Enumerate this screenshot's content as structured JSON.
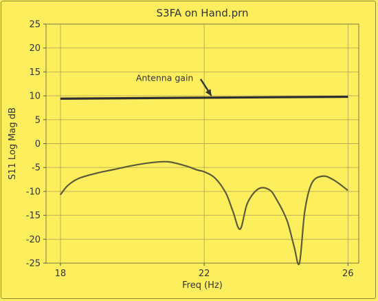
{
  "chart_data": {
    "type": "line",
    "title": "S3FA on Hand.prn",
    "xlabel": "Freq (Hz)",
    "ylabel": "S11 Log Mag dB",
    "xlim": [
      17.6,
      26.3
    ],
    "ylim": [
      -25,
      25
    ],
    "xticks": [
      18,
      22,
      26
    ],
    "yticks": [
      -25,
      -20,
      -15,
      -10,
      -5,
      0,
      5,
      10,
      15,
      20,
      25
    ],
    "grid": true,
    "colors": {
      "background": "#fcee5d",
      "grid": "#b7aa55",
      "curve": "#5d5a38",
      "gain_line": "#2e2e2e"
    },
    "series": [
      {
        "values_x": [
          18.0,
          18.2,
          18.5,
          19.0,
          19.5,
          20.0,
          20.5,
          21.0,
          21.5,
          21.8,
          22.0,
          22.3,
          22.6,
          22.8,
          23.0,
          23.2,
          23.5,
          23.8,
          24.0,
          24.3,
          24.5,
          24.65,
          24.8,
          25.0,
          25.3,
          25.6,
          26.0
        ],
        "values_y": [
          -10.7,
          -8.8,
          -7.3,
          -6.2,
          -5.4,
          -4.6,
          -4.0,
          -3.8,
          -4.7,
          -5.5,
          -5.9,
          -7.2,
          -10.3,
          -14.2,
          -17.9,
          -12.5,
          -9.5,
          -9.6,
          -11.5,
          -16.0,
          -21.5,
          -25.0,
          -14.0,
          -8.2,
          -6.8,
          -7.6,
          -9.8
        ]
      },
      {
        "values_x": [
          18.0,
          26.0
        ],
        "values_y": [
          9.4,
          9.8
        ]
      }
    ],
    "annotations": [
      {
        "text": "Antenna gain",
        "text_x": 20.9,
        "text_y": 13.7,
        "arrow_from": [
          21.9,
          13.5
        ],
        "arrow_to": [
          22.2,
          10.0
        ]
      }
    ]
  }
}
